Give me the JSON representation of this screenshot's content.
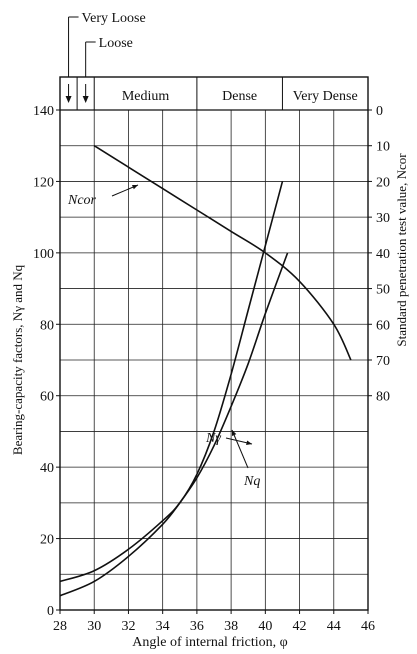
{
  "chart_data": {
    "type": "line",
    "xlabel": "Angle of internal friction, φ",
    "ylabel_left": "Bearing-capacity factors, Nγ and Nq",
    "ylabel_right": "Standard penetration test value, Ncor",
    "xlim": [
      28,
      46
    ],
    "ylim_left": [
      0,
      140
    ],
    "ylim_right_top_value": 0,
    "ylim_right_step": 10,
    "x_ticks": [
      28,
      30,
      32,
      34,
      36,
      38,
      40,
      42,
      44,
      46
    ],
    "y_ticks_left": [
      0,
      20,
      40,
      60,
      80,
      100,
      120,
      140
    ],
    "y_ticks_right": [
      0,
      10,
      20,
      30,
      40,
      50,
      60,
      70,
      80
    ],
    "grid": true,
    "density_bands": [
      {
        "label": "Very Loose",
        "from": 28,
        "to": 29
      },
      {
        "label": "Loose",
        "from": 29,
        "to": 30
      },
      {
        "label": "Medium",
        "from": 30,
        "to": 36
      },
      {
        "label": "Dense",
        "from": 36,
        "to": 41
      },
      {
        "label": "Very Dense",
        "from": 41,
        "to": 46
      }
    ],
    "series": [
      {
        "name": "Ncor",
        "axis": "right",
        "x": [
          30,
          32,
          34,
          36,
          38,
          40,
          42,
          44,
          45
        ],
        "y": [
          10,
          16,
          22,
          28,
          34,
          40,
          48,
          60,
          70
        ]
      },
      {
        "name": "Nγ",
        "axis": "left",
        "x": [
          28,
          30,
          32,
          34,
          35,
          36,
          37,
          38,
          39,
          40,
          41
        ],
        "y": [
          8,
          11,
          17,
          25,
          30,
          38,
          50,
          66,
          84,
          102,
          120
        ]
      },
      {
        "name": "Nq",
        "axis": "left",
        "x": [
          28,
          30,
          32,
          34,
          35,
          36,
          37,
          38,
          39,
          40,
          41.3
        ],
        "y": [
          4,
          8,
          15,
          24,
          30,
          37,
          46,
          57,
          69,
          83,
          100
        ]
      }
    ],
    "annotations": [
      {
        "label": "Ncor"
      },
      {
        "label": "Nγ"
      },
      {
        "label": "Nq"
      }
    ]
  }
}
